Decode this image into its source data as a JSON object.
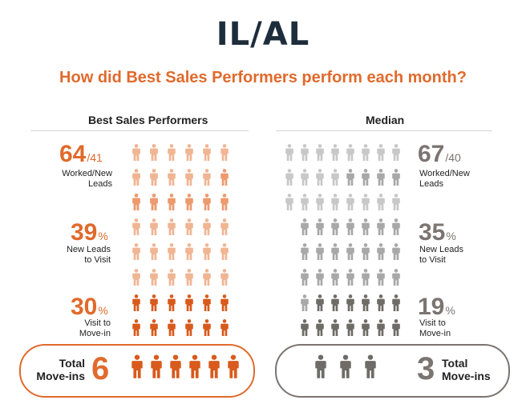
{
  "title": "IL/AL",
  "subtitle": "How did Best Sales Performers perform each month?",
  "best": {
    "heading": "Best Sales Performers",
    "worked": {
      "value": "64",
      "suffix": "/41",
      "label_1": "Worked/New",
      "label_2": "Leads"
    },
    "visit": {
      "value": "39",
      "suffix": "%",
      "label_1": "New Leads",
      "label_2": "to Visit"
    },
    "movein": {
      "value": "30",
      "suffix": "%",
      "label_1": "Visit to",
      "label_2": "Move-in"
    },
    "total": {
      "label_1": "Total",
      "label_2": "Move-ins",
      "value": "6",
      "icon_count": 6
    }
  },
  "median": {
    "heading": "Median",
    "worked": {
      "value": "67",
      "suffix": "/40",
      "label_1": "Worked/New",
      "label_2": "Leads"
    },
    "visit": {
      "value": "35",
      "suffix": "%",
      "label_1": "New Leads",
      "label_2": "to Visit"
    },
    "movein": {
      "value": "19",
      "suffix": "%",
      "label_1": "Visit to",
      "label_2": "Move-in"
    },
    "total": {
      "label_1": "Total",
      "label_2": "Move-ins",
      "value": "3",
      "icon_count": 3
    }
  },
  "colors": {
    "accent": "#e06a2c",
    "best_light": "#f0b593",
    "best_mid": "#ec9a6e",
    "best_dark": "#d85a1c",
    "median_light": "#c8c8c8",
    "median_mid": "#a8a8a8",
    "median_dark": "#6f6b66",
    "title": "#1e2d3b"
  },
  "icon_name": "person-icon"
}
